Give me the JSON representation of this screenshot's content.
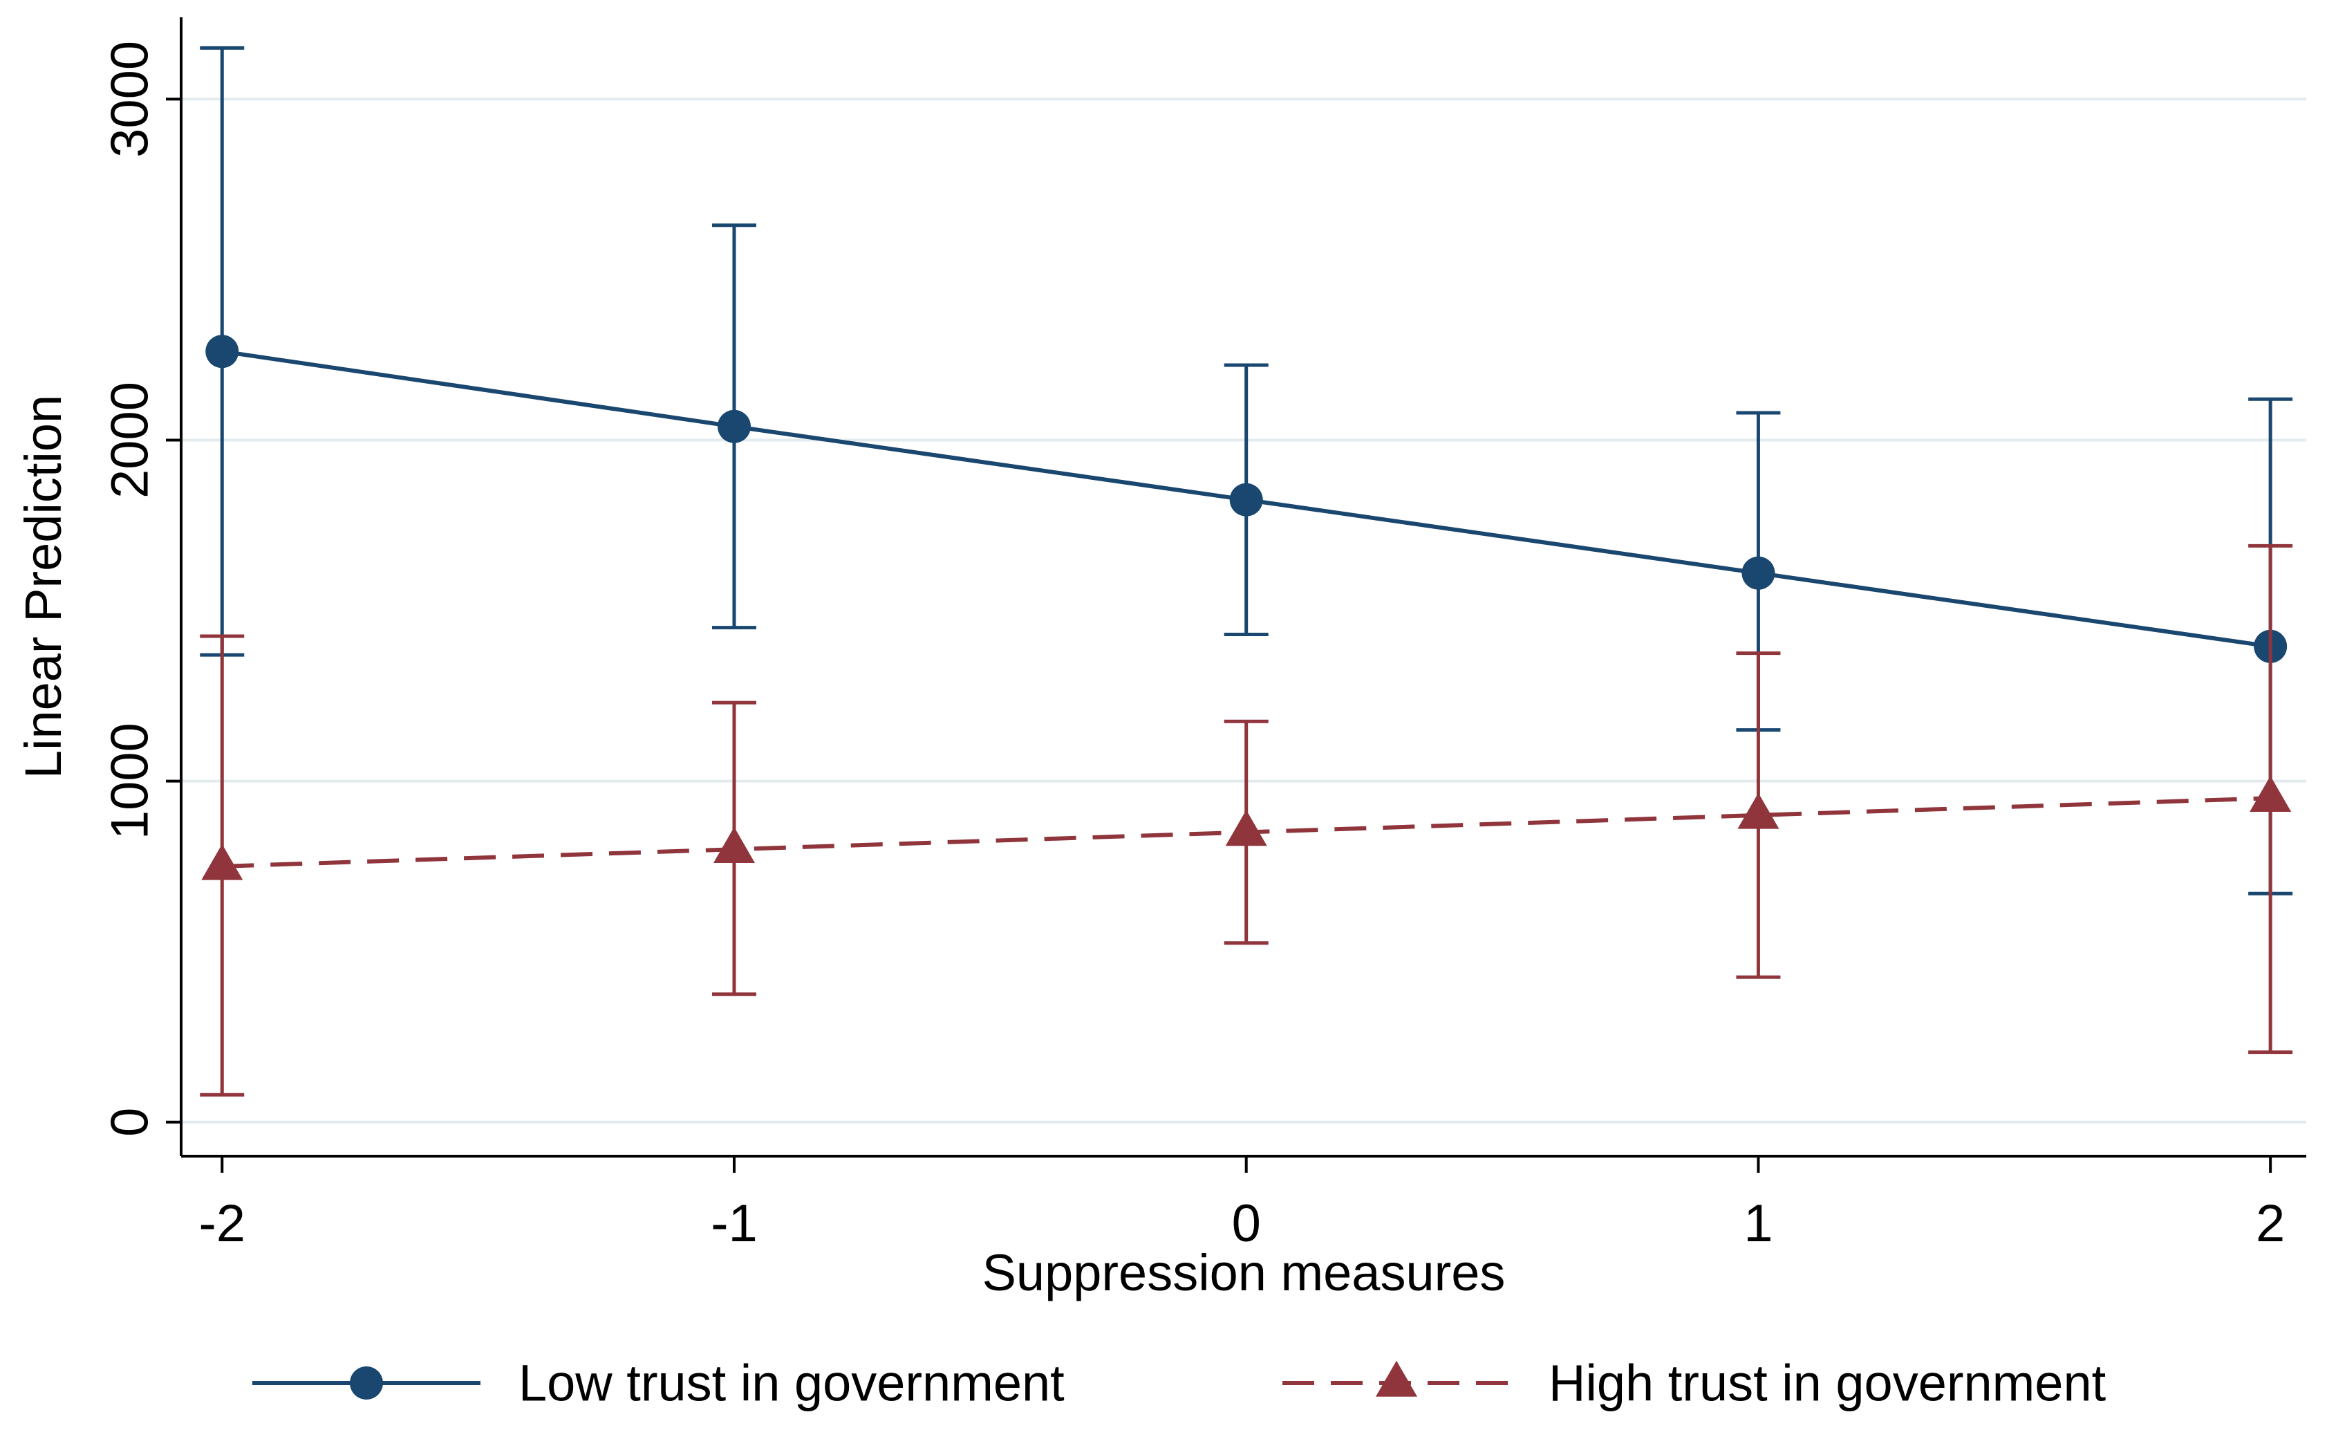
{
  "chart_data": {
    "type": "line",
    "title": "",
    "xlabel": "Suppression measures",
    "ylabel": "Linear Prediction",
    "x": [
      -2,
      -1,
      0,
      1,
      2
    ],
    "x_ticks": [
      "-2",
      "-1",
      "0",
      "1",
      "2"
    ],
    "xlim": [
      -2.08,
      2.07
    ],
    "y_ticks": [
      "0",
      "1000",
      "2000",
      "3000"
    ],
    "ylim": [
      -100,
      3240
    ],
    "grid": true,
    "legend_position": "bottom",
    "series": [
      {
        "name": "Low trust in government",
        "color": "#1a476f",
        "line_style": "solid",
        "marker": "circle",
        "values": [
          2260,
          2040,
          1825,
          1610,
          1395
        ],
        "ci_low": [
          1370,
          1450,
          1430,
          1150,
          670
        ],
        "ci_high": [
          3150,
          2630,
          2220,
          2080,
          2120
        ]
      },
      {
        "name": "High trust in government",
        "color": "#90353b",
        "line_style": "dashed",
        "marker": "triangle",
        "values": [
          750,
          800,
          850,
          900,
          950
        ],
        "ci_low": [
          80,
          375,
          525,
          425,
          205
        ],
        "ci_high": [
          1425,
          1230,
          1175,
          1375,
          1690
        ]
      }
    ]
  }
}
